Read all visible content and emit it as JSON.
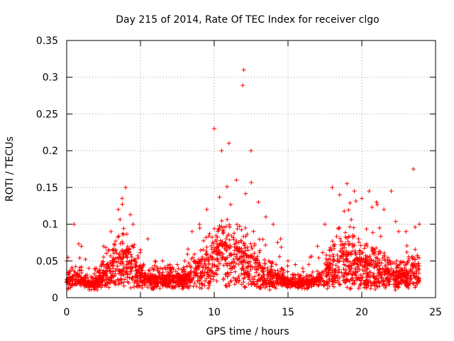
{
  "chart_data": {
    "type": "scatter",
    "title": "Day 215 of 2014, Rate Of TEC Index for receiver clgo",
    "xlabel": "GPS time / hours",
    "ylabel": "ROTI / TECUs",
    "xlim": [
      0,
      25
    ],
    "ylim": [
      0,
      0.35
    ],
    "xticks": [
      "0",
      "5",
      "10",
      "15",
      "20",
      "25"
    ],
    "yticks": [
      "0",
      "0.05",
      "0.1",
      "0.15",
      "0.2",
      "0.25",
      "0.3",
      "0.35"
    ],
    "grid": true,
    "marker": "+",
    "series": [
      {
        "name": "ROTI",
        "color": "#ff0000",
        "envelope": {
          "x": [
            0,
            0.5,
            1,
            1.5,
            2,
            2.5,
            3,
            3.5,
            4,
            4.5,
            5,
            5.5,
            6,
            6.5,
            7,
            7.5,
            8,
            8.5,
            9,
            9.5,
            10,
            10.5,
            11,
            11.5,
            12,
            12.5,
            13,
            13.5,
            14,
            14.5,
            15,
            15.5,
            16,
            16.5,
            17,
            17.5,
            18,
            18.5,
            19,
            19.5,
            20,
            20.5,
            21,
            21.5,
            22,
            22.5,
            23,
            23.5,
            23.9
          ],
          "typical": [
            0.025,
            0.035,
            0.03,
            0.02,
            0.022,
            0.04,
            0.05,
            0.06,
            0.07,
            0.055,
            0.035,
            0.03,
            0.03,
            0.03,
            0.03,
            0.03,
            0.03,
            0.04,
            0.05,
            0.06,
            0.07,
            0.08,
            0.075,
            0.07,
            0.07,
            0.06,
            0.05,
            0.04,
            0.035,
            0.03,
            0.025,
            0.022,
            0.022,
            0.025,
            0.03,
            0.04,
            0.055,
            0.06,
            0.065,
            0.06,
            0.055,
            0.055,
            0.05,
            0.045,
            0.04,
            0.035,
            0.035,
            0.05,
            0.04
          ],
          "peak": [
            0.05,
            0.1,
            0.07,
            0.04,
            0.04,
            0.07,
            0.09,
            0.12,
            0.15,
            0.1,
            0.065,
            0.08,
            0.05,
            0.05,
            0.045,
            0.045,
            0.05,
            0.09,
            0.1,
            0.12,
            0.23,
            0.2,
            0.21,
            0.16,
            0.31,
            0.2,
            0.13,
            0.11,
            0.1,
            0.08,
            0.05,
            0.045,
            0.04,
            0.055,
            0.07,
            0.1,
            0.15,
            0.14,
            0.155,
            0.145,
            0.135,
            0.145,
            0.13,
            0.12,
            0.145,
            0.09,
            0.09,
            0.175,
            0.1
          ]
        }
      }
    ]
  }
}
